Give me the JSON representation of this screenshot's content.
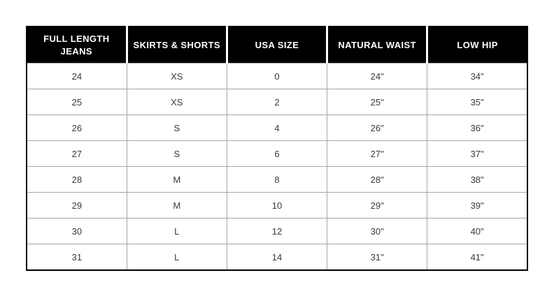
{
  "chart_data": {
    "type": "table",
    "title": "",
    "columns": [
      "FULL LENGTH\nJEANS",
      "SKIRTS & SHORTS",
      "USA SIZE",
      "NATURAL WAIST",
      "LOW HIP"
    ],
    "rows": [
      [
        "24",
        "XS",
        "0",
        "24\"",
        "34\""
      ],
      [
        "25",
        "XS",
        "2",
        "25\"",
        "35\""
      ],
      [
        "26",
        "S",
        "4",
        "26\"",
        "36\""
      ],
      [
        "27",
        "S",
        "6",
        "27\"",
        "37\""
      ],
      [
        "28",
        "M",
        "8",
        "28\"",
        "38\""
      ],
      [
        "29",
        "M",
        "10",
        "29\"",
        "39\""
      ],
      [
        "30",
        "L",
        "12",
        "30\"",
        "40\""
      ],
      [
        "31",
        "L",
        "14",
        "31\"",
        "41\""
      ]
    ],
    "layout": {
      "header_bg": "#000000",
      "header_text_color": "#ffffff",
      "body_text_color": "#3a3a3a",
      "grid_color": "#a6a6a6",
      "outer_border_color": "#000000",
      "grid": true
    }
  }
}
